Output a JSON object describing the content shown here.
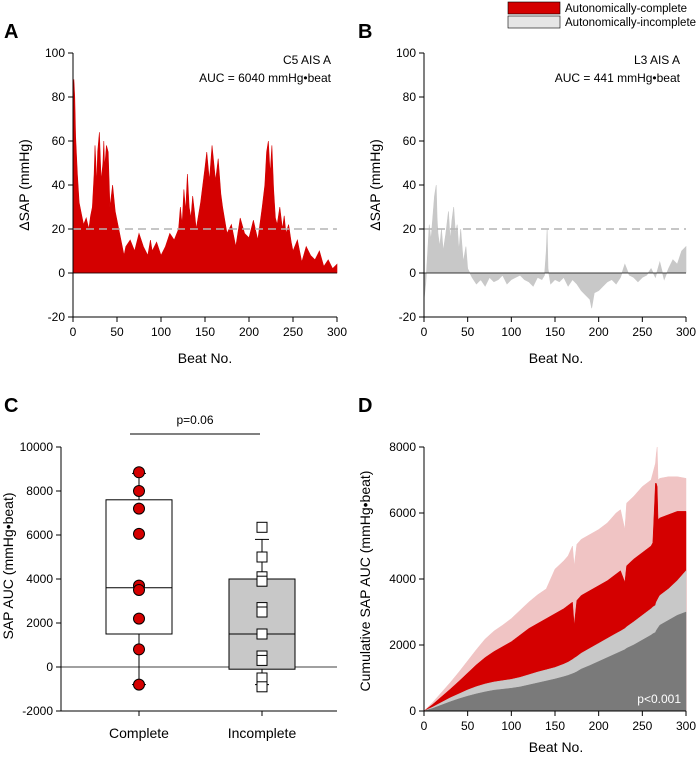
{
  "colors": {
    "complete": "#d40000",
    "complete_light": "#f0c4c4",
    "incomplete": "#c8c8c8",
    "incomplete_dark": "#7a7a7a",
    "dashed": "#b4b4b4"
  },
  "legend": {
    "items": [
      {
        "label": "Autonomically-complete",
        "color": "#d40000"
      },
      {
        "label": "Autonomically-incomplete",
        "color": "#e6e6e6"
      }
    ]
  },
  "chart_data": [
    {
      "id": "A",
      "panel_label": "A",
      "type": "area",
      "title": "C5 AIS A",
      "annotation": "AUC = 6040 mmHg•beat",
      "xlabel": "Beat No.",
      "ylabel": "ΔSAP (mmHg)",
      "xlim": [
        0,
        300
      ],
      "ylim": [
        -20,
        100
      ],
      "xticks": [
        0,
        50,
        100,
        150,
        200,
        250,
        300
      ],
      "yticks": [
        -20,
        0,
        20,
        40,
        60,
        80,
        100
      ],
      "threshold": 20,
      "color": "#d40000",
      "series": [
        {
          "name": "C5 AIS A",
          "x": [
            0,
            1,
            2,
            3,
            5,
            7,
            9,
            12,
            15,
            18,
            20,
            22,
            24,
            25,
            26,
            27,
            28,
            30,
            32,
            34,
            35,
            36,
            38,
            40,
            42,
            45,
            48,
            50,
            52,
            55,
            58,
            60,
            65,
            70,
            75,
            80,
            85,
            88,
            90,
            95,
            100,
            105,
            110,
            115,
            120,
            122,
            124,
            126,
            128,
            130,
            132,
            134,
            136,
            138,
            140,
            145,
            150,
            152,
            155,
            158,
            160,
            162,
            165,
            168,
            170,
            175,
            180,
            185,
            190,
            195,
            200,
            205,
            210,
            215,
            218,
            220,
            222,
            224,
            226,
            228,
            230,
            232,
            235,
            238,
            240,
            242,
            245,
            248,
            250,
            255,
            260,
            265,
            270,
            275,
            280,
            285,
            290,
            295,
            300
          ],
          "values": [
            70,
            88,
            80,
            62,
            45,
            32,
            28,
            22,
            25,
            20,
            26,
            30,
            45,
            58,
            50,
            40,
            55,
            64,
            42,
            50,
            60,
            48,
            58,
            55,
            30,
            40,
            28,
            24,
            20,
            14,
            8,
            12,
            15,
            10,
            18,
            12,
            8,
            15,
            10,
            14,
            8,
            12,
            18,
            15,
            20,
            30,
            22,
            38,
            28,
            45,
            30,
            25,
            35,
            28,
            20,
            32,
            48,
            55,
            42,
            58,
            50,
            42,
            52,
            36,
            30,
            18,
            22,
            12,
            25,
            18,
            16,
            24,
            15,
            30,
            40,
            55,
            60,
            45,
            58,
            38,
            25,
            22,
            30,
            20,
            26,
            18,
            22,
            14,
            10,
            15,
            5,
            12,
            8,
            6,
            10,
            3,
            6,
            2,
            4
          ]
        }
      ]
    },
    {
      "id": "B",
      "panel_label": "B",
      "type": "area",
      "title": "L3 AIS A",
      "annotation": "AUC = 441 mmHg•beat",
      "xlabel": "Beat No.",
      "ylabel": "ΔSAP (mmHg)",
      "xlim": [
        0,
        300
      ],
      "ylim": [
        -20,
        100
      ],
      "xticks": [
        0,
        50,
        100,
        150,
        200,
        250,
        300
      ],
      "yticks": [
        -20,
        0,
        20,
        40,
        60,
        80,
        100
      ],
      "threshold": 20,
      "color": "#c8c8c8",
      "series": [
        {
          "name": "L3 AIS A",
          "x": [
            0,
            2,
            4,
            6,
            8,
            10,
            12,
            14,
            15,
            16,
            18,
            20,
            22,
            25,
            28,
            30,
            32,
            34,
            36,
            38,
            40,
            42,
            45,
            48,
            50,
            55,
            60,
            65,
            70,
            75,
            80,
            85,
            90,
            95,
            100,
            105,
            110,
            115,
            120,
            125,
            130,
            135,
            138,
            140,
            141,
            142,
            145,
            150,
            155,
            160,
            165,
            170,
            175,
            180,
            185,
            190,
            192,
            195,
            200,
            205,
            210,
            215,
            220,
            225,
            230,
            235,
            240,
            245,
            250,
            255,
            260,
            265,
            270,
            275,
            280,
            285,
            290,
            295,
            300
          ],
          "values": [
            -12,
            -5,
            8,
            22,
            15,
            25,
            35,
            40,
            25,
            18,
            12,
            20,
            10,
            18,
            28,
            15,
            24,
            30,
            18,
            22,
            10,
            20,
            5,
            12,
            2,
            -2,
            -5,
            -3,
            -6,
            -2,
            -4,
            -3,
            -1,
            -5,
            -3,
            -2,
            -1,
            -3,
            -4,
            -6,
            -2,
            -3,
            -1,
            10,
            20,
            2,
            -5,
            -3,
            -4,
            -2,
            -6,
            -3,
            -5,
            -8,
            -10,
            -12,
            -16,
            -9,
            -8,
            -6,
            -4,
            -3,
            -5,
            -2,
            4,
            -1,
            -2,
            -4,
            -2,
            -1,
            2,
            -2,
            5,
            -3,
            2,
            6,
            4,
            10,
            12
          ]
        }
      ]
    },
    {
      "id": "C",
      "panel_label": "C",
      "type": "box",
      "xlabel": "",
      "ylabel": "SAP AUC (mmHg•beat)",
      "ylim": [
        -2000,
        10000
      ],
      "yticks": [
        -2000,
        0,
        2000,
        4000,
        6000,
        8000,
        10000
      ],
      "significance": "p=0.06",
      "groups": [
        {
          "name": "Complete",
          "whisker_low": -800,
          "q1": 1500,
          "median": 3600,
          "q3": 7600,
          "whisker_high": 8800,
          "points": [
            8850,
            8000,
            7200,
            6050,
            3700,
            3500,
            2200,
            800,
            -800
          ],
          "color": "#d40000",
          "box_fill": "#ffffff",
          "marker": "circle"
        },
        {
          "name": "Incomplete",
          "whisker_low": -800,
          "q1": -100,
          "median": 1500,
          "q3": 4000,
          "whisker_high": 5800,
          "points": [
            6350,
            5000,
            4100,
            3900,
            2700,
            2500,
            1500,
            500,
            300,
            -500,
            -900
          ],
          "color": "#ffffff",
          "box_fill": "#c8c8c8",
          "marker": "square"
        }
      ]
    },
    {
      "id": "D",
      "panel_label": "D",
      "type": "area",
      "xlabel": "Beat No.",
      "ylabel": "Cumulative SAP AUC (mmHg•beat)",
      "xlim": [
        0,
        300
      ],
      "ylim": [
        0,
        8000
      ],
      "xticks": [
        0,
        50,
        100,
        150,
        200,
        250,
        300
      ],
      "yticks": [
        0,
        2000,
        4000,
        6000,
        8000
      ],
      "annotation": "p<0.001",
      "x": [
        0,
        10,
        20,
        30,
        40,
        50,
        60,
        70,
        80,
        90,
        100,
        110,
        120,
        130,
        140,
        150,
        160,
        165,
        170,
        172,
        175,
        180,
        190,
        200,
        210,
        220,
        225,
        230,
        232,
        240,
        250,
        260,
        262,
        265,
        266,
        267,
        268,
        270,
        280,
        290,
        300
      ],
      "series": [
        {
          "name": "Complete upper band",
          "color": "#f0c4c4",
          "values": [
            0,
            260,
            560,
            860,
            1180,
            1520,
            1860,
            2180,
            2420,
            2600,
            2800,
            3050,
            3300,
            3520,
            3700,
            4300,
            4550,
            4700,
            5000,
            4400,
            5050,
            5200,
            5350,
            5500,
            5700,
            6000,
            6100,
            5500,
            6300,
            6500,
            6800,
            7000,
            7200,
            7500,
            7800,
            8000,
            7000,
            7050,
            7100,
            7100,
            7050
          ]
        },
        {
          "name": "Complete mean",
          "color": "#d40000",
          "values": [
            0,
            200,
            430,
            660,
            900,
            1150,
            1400,
            1620,
            1800,
            1950,
            2100,
            2300,
            2500,
            2650,
            2800,
            2950,
            3100,
            3200,
            3300,
            2600,
            3350,
            3500,
            3650,
            3800,
            3950,
            4150,
            4250,
            3900,
            4400,
            4600,
            4800,
            5000,
            5100,
            6900,
            6900,
            6800,
            5800,
            5850,
            5950,
            6050,
            6050
          ]
        },
        {
          "name": "Incomplete upper band",
          "color": "#c8c8c8",
          "values": [
            0,
            120,
            260,
            400,
            520,
            640,
            740,
            820,
            880,
            920,
            960,
            1020,
            1100,
            1180,
            1250,
            1320,
            1420,
            1480,
            1560,
            1600,
            1650,
            1750,
            1900,
            2050,
            2200,
            2350,
            2420,
            2500,
            2550,
            2700,
            2900,
            3100,
            3150,
            3200,
            3300,
            3350,
            3400,
            3500,
            3700,
            3950,
            4250
          ]
        },
        {
          "name": "Incomplete mean",
          "color": "#7a7a7a",
          "values": [
            0,
            80,
            180,
            280,
            370,
            450,
            520,
            580,
            630,
            660,
            690,
            730,
            790,
            850,
            910,
            970,
            1040,
            1080,
            1130,
            1150,
            1190,
            1270,
            1380,
            1500,
            1620,
            1740,
            1800,
            1860,
            1900,
            2000,
            2150,
            2300,
            2340,
            2380,
            2440,
            2480,
            2520,
            2600,
            2750,
            2900,
            3000
          ]
        }
      ]
    }
  ]
}
